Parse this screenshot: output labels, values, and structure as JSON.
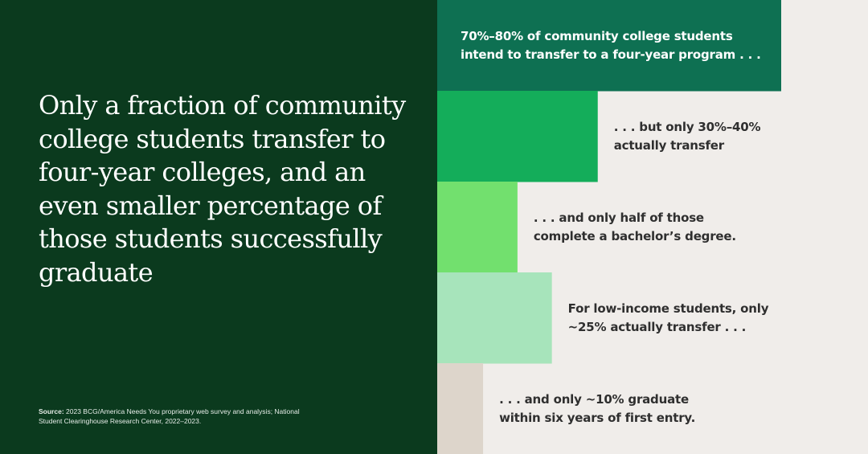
{
  "headline": "Only a fraction of community college students transfer to four-year colleges, and an even smaller percentage of those students successfully graduate",
  "source": {
    "label": "Source:",
    "text": "2023 BCG/America Needs You proprietary web survey and analysis; National Student Clearinghouse Research Center, 2022–2023."
  },
  "chart_data": {
    "type": "bar",
    "orientation": "horizontal",
    "grid": false,
    "bars": [
      {
        "lines": [
          "70%–80% of community college students",
          "intend to transfer to a four-year program . . ."
        ],
        "value": 75,
        "color": "#0e7052",
        "text_color": "#ffffff"
      },
      {
        "lines": [
          ". . . but only 30%–40%",
          "actually transfer"
        ],
        "value": 35,
        "color": "#14ad5a",
        "text_color": "#2f2f2f"
      },
      {
        "lines": [
          ". . . and only half of those",
          "complete a bachelor’s degree."
        ],
        "value": 17.5,
        "color": "#72e06e",
        "text_color": "#2f2f2f"
      },
      {
        "lines": [
          "For low-income students, only",
          "~25% actually transfer . . ."
        ],
        "value": 25,
        "color": "#a7e4bb",
        "text_color": "#2f2f2f"
      },
      {
        "lines": [
          ". . . and only ~10% graduate",
          "within six years of first entry."
        ],
        "value": 10,
        "color": "#ddd5cb",
        "text_color": "#2f2f2f"
      }
    ]
  }
}
